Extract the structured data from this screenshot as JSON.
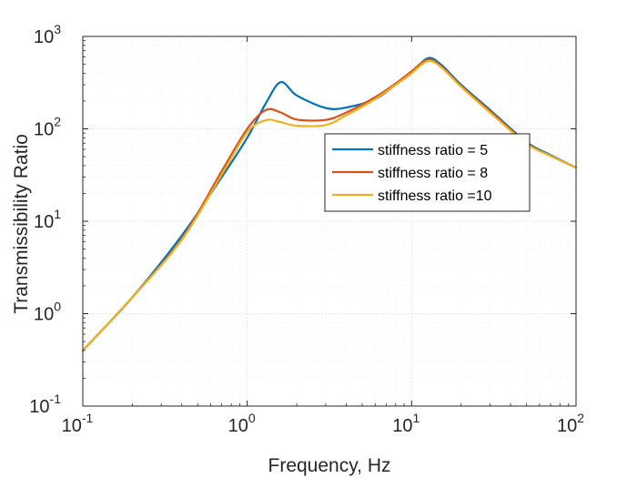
{
  "chart_data": {
    "type": "line",
    "title": "",
    "xlabel": "Frequency, Hz",
    "ylabel": "Transmissibility Ratio",
    "xscale": "log",
    "yscale": "log",
    "xlim": [
      0.1,
      100
    ],
    "ylim": [
      0.1,
      1000
    ],
    "grid": true,
    "minor_grid": true,
    "legend_position": "center-right",
    "x_ticks": [
      {
        "base": "10",
        "exp": "-1",
        "value": 0.1
      },
      {
        "base": "10",
        "exp": "0",
        "value": 1
      },
      {
        "base": "10",
        "exp": "1",
        "value": 10
      },
      {
        "base": "10",
        "exp": "2",
        "value": 100
      }
    ],
    "y_ticks": [
      {
        "base": "10",
        "exp": "-1",
        "value": 0.1
      },
      {
        "base": "10",
        "exp": "0",
        "value": 1
      },
      {
        "base": "10",
        "exp": "1",
        "value": 10
      },
      {
        "base": "10",
        "exp": "2",
        "value": 100
      },
      {
        "base": "10",
        "exp": "3",
        "value": 1000
      }
    ],
    "x": [
      0.1,
      0.2,
      0.4,
      0.7,
      1.0,
      1.3,
      1.6,
      2.0,
      3.0,
      4.0,
      6.0,
      8.0,
      10.0,
      12.5,
      15.0,
      20.0,
      30.0,
      50.0,
      70.0,
      100.0
    ],
    "series": [
      {
        "name": "stiffness ratio = 5",
        "color": "#0072BD",
        "values": [
          0.4,
          1.5,
          7,
          30,
          80,
          190,
          320,
          230,
          168,
          170,
          210,
          300,
          400,
          580,
          500,
          300,
          160,
          72,
          52,
          38
        ]
      },
      {
        "name": "stiffness ratio = 8",
        "color": "#D95319",
        "values": [
          0.4,
          1.5,
          6.5,
          35,
          100,
          160,
          150,
          126,
          125,
          150,
          220,
          310,
          420,
          560,
          480,
          290,
          155,
          70,
          51,
          38
        ]
      },
      {
        "name": "stiffness ratio =10",
        "color": "#EDB120",
        "values": [
          0.4,
          1.5,
          6.3,
          32,
          92,
          124,
          118,
          108,
          110,
          140,
          210,
          300,
          400,
          540,
          470,
          285,
          150,
          69,
          51,
          38
        ]
      }
    ]
  }
}
